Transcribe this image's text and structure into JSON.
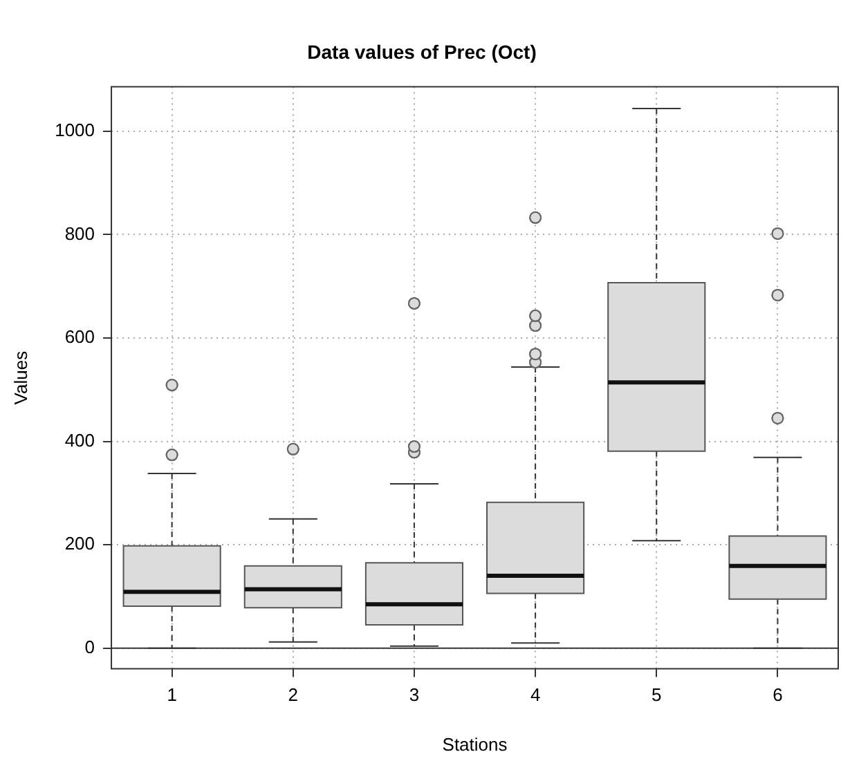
{
  "chart_data": {
    "type": "box",
    "title": "Data values of Prec (Oct)",
    "xlabel": "Stations",
    "ylabel": "Values",
    "categories": [
      "1",
      "2",
      "3",
      "4",
      "5",
      "6"
    ],
    "boxes": [
      {
        "low": 0,
        "q1": 81,
        "median": 109,
        "q3": 198,
        "high": 338,
        "outliers": [
          374,
          509
        ]
      },
      {
        "low": 12,
        "q1": 78,
        "median": 114,
        "q3": 159,
        "high": 250,
        "outliers": [
          385
        ]
      },
      {
        "low": 4,
        "q1": 45,
        "median": 85,
        "q3": 165,
        "high": 318,
        "outliers": [
          379,
          390,
          667
        ]
      },
      {
        "low": 10,
        "q1": 106,
        "median": 140,
        "q3": 282,
        "high": 544,
        "outliers": [
          553,
          569,
          624,
          643,
          833
        ]
      },
      {
        "low": 208,
        "q1": 381,
        "median": 514,
        "q3": 707,
        "high": 1044
      },
      {
        "low": 0,
        "q1": 95,
        "median": 159,
        "q3": 217,
        "high": 369,
        "outliers": [
          445,
          683,
          802
        ]
      }
    ],
    "color": "#dcdcdc",
    "ylim": [
      -40,
      1086
    ],
    "yticks": [
      0,
      200,
      400,
      600,
      800,
      1000
    ],
    "grid": true,
    "marker": "circle",
    "ref_lines": [
      {
        "axis": "y",
        "value": 0,
        "color": "#333333"
      }
    ]
  }
}
